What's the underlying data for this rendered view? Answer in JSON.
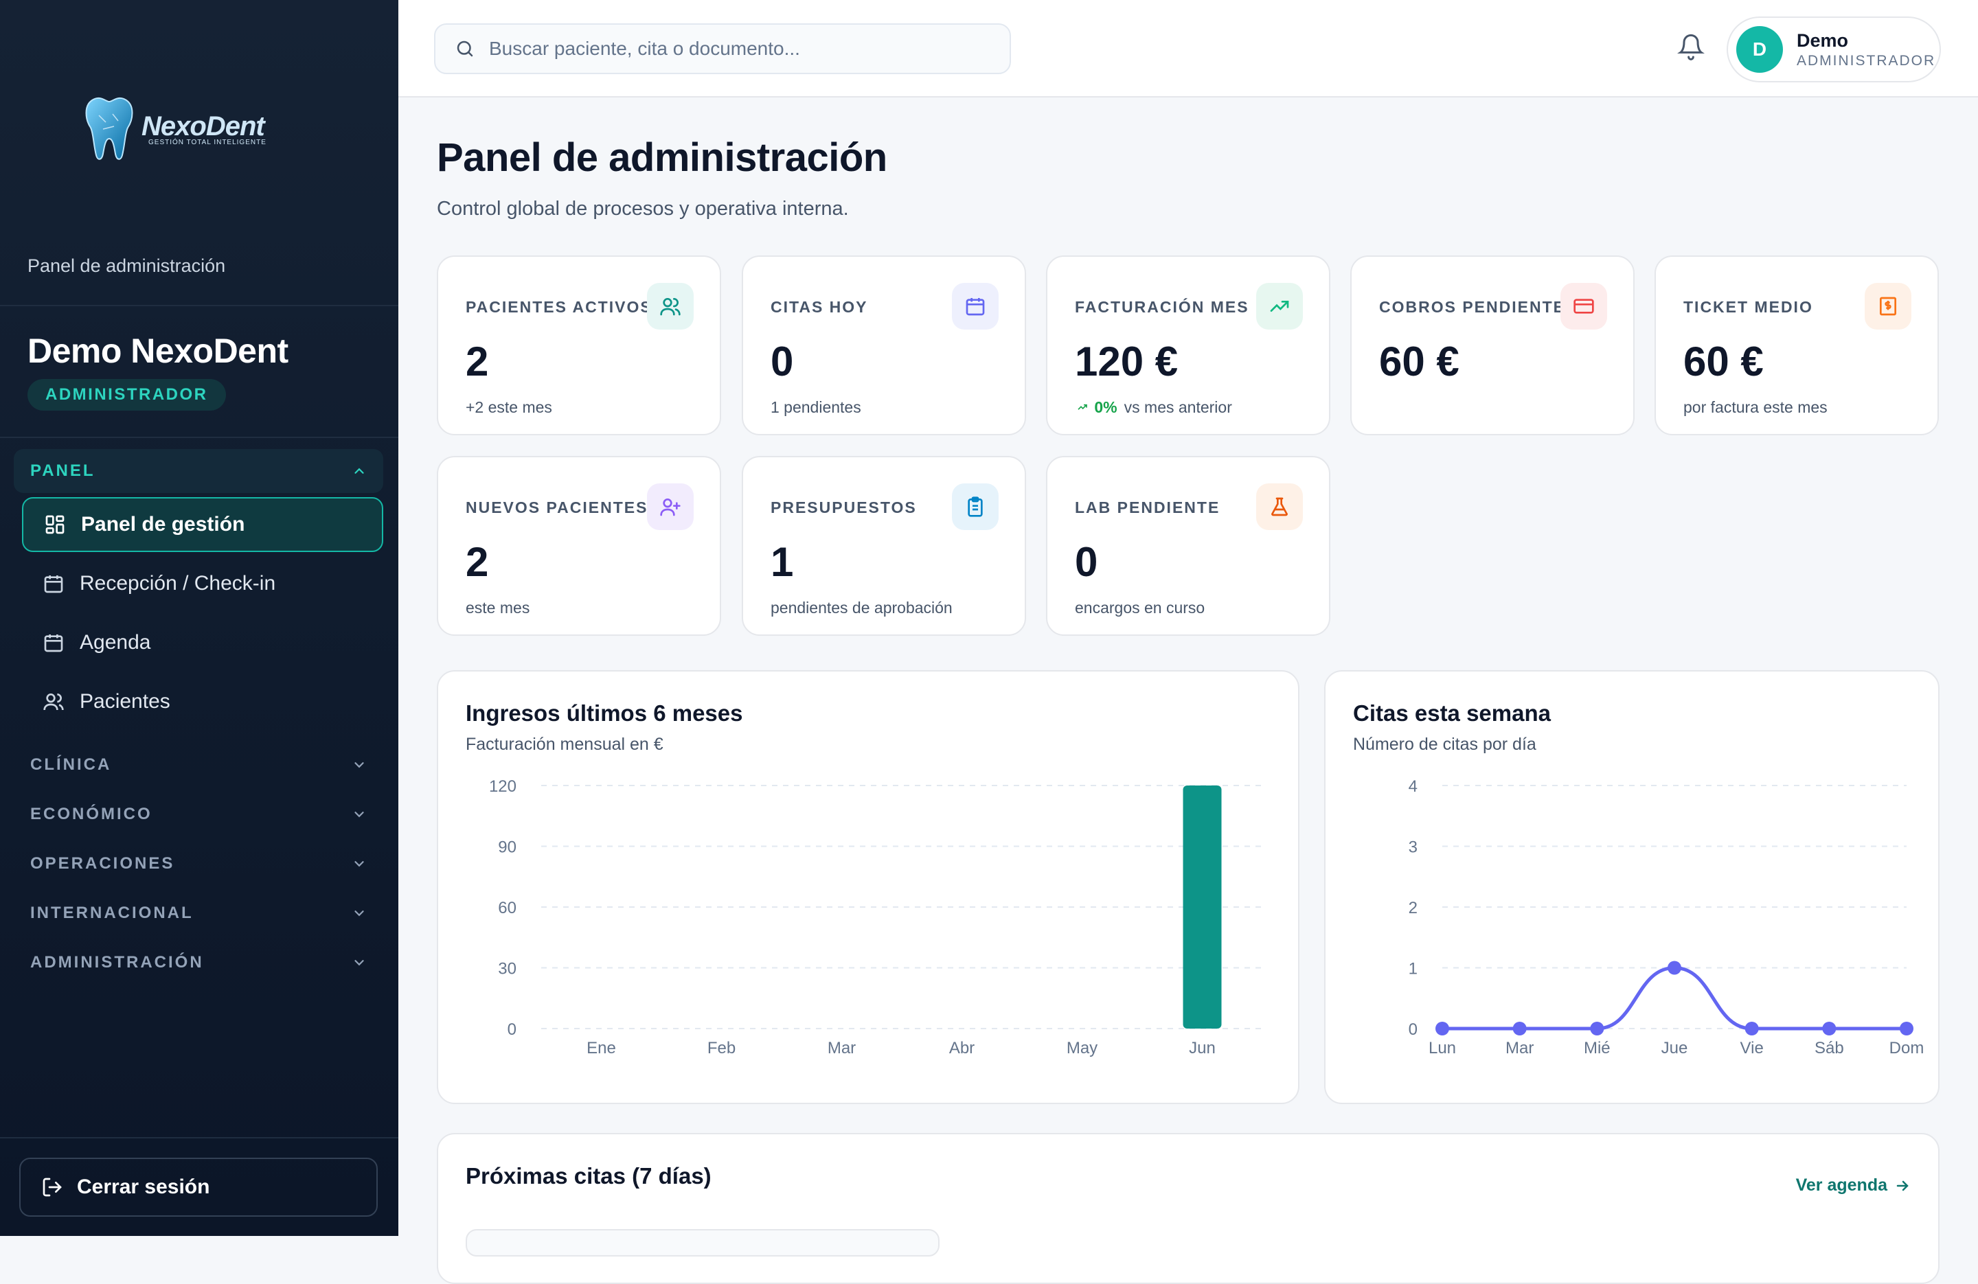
{
  "brand": {
    "name": "NexoDent",
    "tagline": "GESTIÓN TOTAL INTELIGENTE"
  },
  "sidebar": {
    "caption": "Panel de administración",
    "user_name": "Demo NexoDent",
    "role": "ADMINISTRADOR",
    "section_open": "PANEL",
    "items": [
      {
        "label": "Panel de gestión",
        "icon": "dashboard-icon",
        "active": true
      },
      {
        "label": "Recepción / Check-in",
        "icon": "calendar-icon"
      },
      {
        "label": "Agenda",
        "icon": "calendar-icon"
      },
      {
        "label": "Pacientes",
        "icon": "users-icon"
      }
    ],
    "sections": [
      "CLÍNICA",
      "ECONÓMICO",
      "OPERACIONES",
      "INTERNACIONAL",
      "ADMINISTRACIÓN"
    ],
    "logout": "Cerrar sesión"
  },
  "topbar": {
    "search_placeholder": "Buscar paciente, cita o documento...",
    "user": {
      "initial": "D",
      "name": "Demo",
      "role": "ADMINISTRADOR"
    }
  },
  "page": {
    "title": "Panel de administración",
    "subtitle": "Control global de procesos y operativa interna."
  },
  "kpis": [
    {
      "label": "PACIENTES ACTIVOS",
      "value": "2",
      "sub": "+2 este mes",
      "icon": "users-icon",
      "color": "#0d9488",
      "bg": "#e6f6f4"
    },
    {
      "label": "CITAS HOY",
      "value": "0",
      "sub": "1 pendientes",
      "icon": "calendar-icon",
      "color": "#6366f1",
      "bg": "#eef0fd"
    },
    {
      "label": "FACTURACIÓN MES",
      "value": "120 €",
      "sub_up": "0%",
      "sub": "vs mes anterior",
      "icon": "trending-up-icon",
      "color": "#10b981",
      "bg": "#e7f7f0"
    },
    {
      "label": "COBROS PENDIENTES",
      "value": "60 €",
      "sub": "",
      "icon": "credit-card-icon",
      "color": "#ef4444",
      "bg": "#fdecec"
    },
    {
      "label": "TICKET MEDIO",
      "value": "60 €",
      "sub": "por factura este mes",
      "icon": "receipt-icon",
      "color": "#f97316",
      "bg": "#fef1e7"
    },
    {
      "label": "NUEVOS PACIENTES",
      "value": "2",
      "sub": "este mes",
      "icon": "user-plus-icon",
      "color": "#8b5cf6",
      "bg": "#f2ecfd"
    },
    {
      "label": "PRESUPUESTOS",
      "value": "1",
      "sub": "pendientes de aprobación",
      "icon": "clipboard-icon",
      "color": "#0284c7",
      "bg": "#e6f3fb"
    },
    {
      "label": "LAB PENDIENTE",
      "value": "0",
      "sub": "encargos en curso",
      "icon": "flask-icon",
      "color": "#ea580c",
      "bg": "#fef1e7"
    }
  ],
  "chart_data": [
    {
      "type": "bar",
      "title": "Ingresos últimos 6 meses",
      "subtitle": "Facturación mensual en €",
      "categories": [
        "Ene",
        "Feb",
        "Mar",
        "Abr",
        "May",
        "Jun"
      ],
      "values": [
        0,
        0,
        0,
        0,
        0,
        120
      ],
      "ylim": [
        0,
        120
      ],
      "yticks": [
        0,
        30,
        60,
        90,
        120
      ],
      "grid": true,
      "color": "#0d9488"
    },
    {
      "type": "line",
      "title": "Citas esta semana",
      "subtitle": "Número de citas por día",
      "categories": [
        "Lun",
        "Mar",
        "Mié",
        "Jue",
        "Vie",
        "Sáb",
        "Dom"
      ],
      "values": [
        0,
        0,
        0,
        1,
        0,
        0,
        0
      ],
      "ylim": [
        0,
        4
      ],
      "yticks": [
        0,
        1,
        2,
        3,
        4
      ],
      "grid": true,
      "color": "#6366f1"
    }
  ],
  "upcoming": {
    "title": "Próximas citas (7 días)",
    "link": "Ver agenda"
  }
}
